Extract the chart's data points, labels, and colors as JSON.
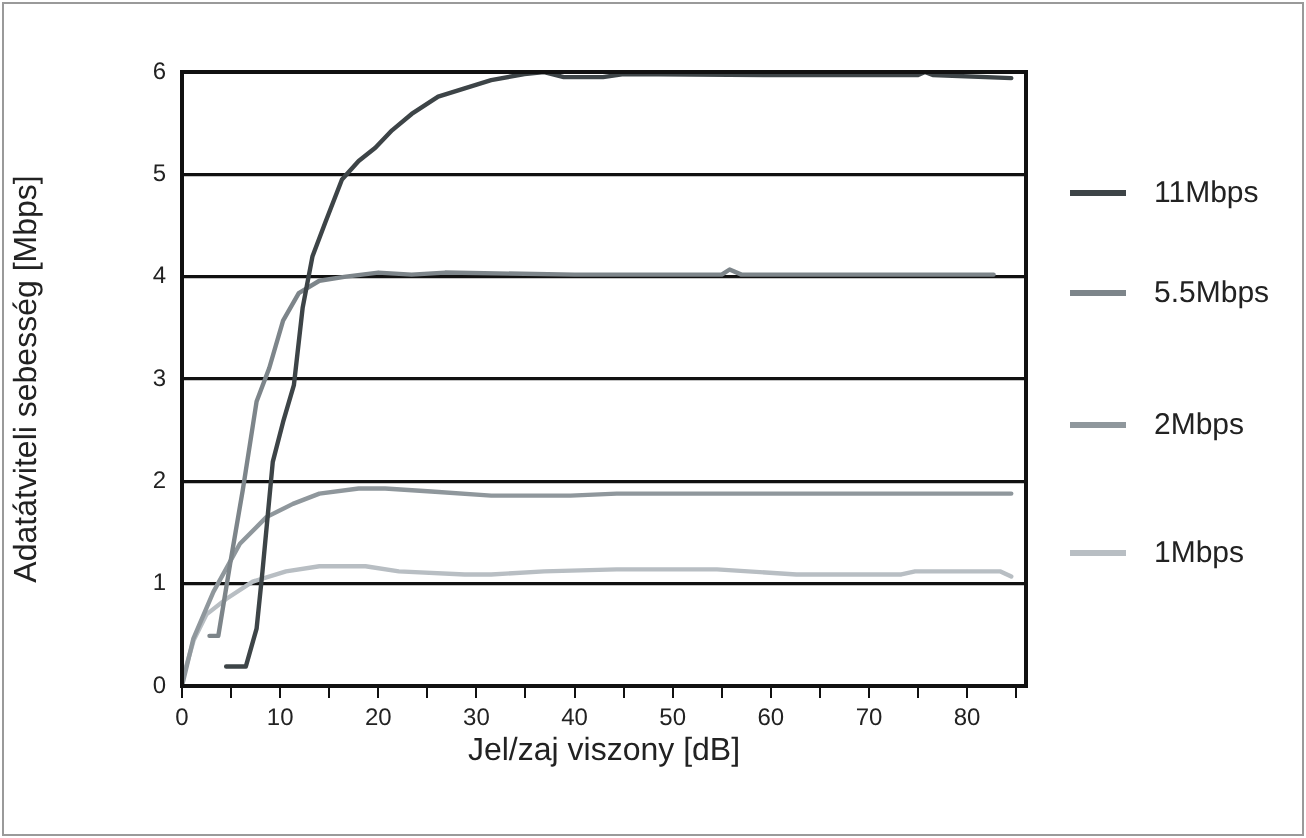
{
  "chart_data": {
    "type": "line",
    "xlabel": "Jel/zaj viszony [dB]",
    "ylabel": "Adatátviteli sebesség [Mbps]",
    "xlim": [
      0,
      86
    ],
    "ylim": [
      0,
      6
    ],
    "xticks": [
      0,
      {
        "value": 5,
        "label": null
      },
      10,
      {
        "value": 15,
        "label": null
      },
      20,
      {
        "value": 25,
        "label": null
      },
      30,
      {
        "value": 35,
        "label": null
      },
      40,
      {
        "value": 45,
        "label": null
      },
      50,
      {
        "value": 55,
        "label": null
      },
      60,
      {
        "value": 65,
        "label": null
      },
      70,
      {
        "value": 75,
        "label": null
      },
      80,
      {
        "value": 85,
        "label": null
      }
    ],
    "yticks": [
      0,
      1,
      2,
      3,
      4,
      5,
      6
    ],
    "grid": "y",
    "legend": "right",
    "marker": "none",
    "line_style": "solid",
    "series": [
      {
        "name": "11Mbps",
        "color": "#3d4447",
        "x": [
          4.5,
          6.5,
          7.6,
          8.2,
          9.25,
          10.3,
          11.4,
          12.3,
          13.3,
          14.6,
          16.3,
          18,
          19.7,
          21.4,
          23.4,
          26.1,
          28.8,
          31.5,
          34.9,
          36.9,
          38.9,
          42.9,
          45,
          60,
          75,
          75.7,
          76.5,
          84.5
        ],
        "values": [
          0.19,
          0.19,
          0.56,
          1.12,
          2.19,
          2.58,
          2.94,
          3.7,
          4.2,
          4.53,
          4.95,
          5.13,
          5.26,
          5.43,
          5.59,
          5.76,
          5.84,
          5.92,
          5.98,
          6.0,
          5.95,
          5.95,
          5.98,
          5.97,
          5.97,
          6.0,
          5.97,
          5.94
        ]
      },
      {
        "name": "5.5Mbps",
        "color": "#7d858a",
        "x": [
          2.8,
          3.7,
          4.9,
          6.2,
          7.6,
          8.9,
          10.3,
          11.9,
          14,
          16.7,
          20,
          23.4,
          26.8,
          40,
          55,
          55.8,
          57,
          70,
          82.7
        ],
        "values": [
          0.49,
          0.49,
          1.19,
          1.92,
          2.78,
          3.11,
          3.57,
          3.84,
          3.96,
          4.0,
          4.04,
          4.02,
          4.04,
          4.02,
          4.02,
          4.07,
          4.02,
          4.02,
          4.02
        ]
      },
      {
        "name": "2Mbps",
        "color": "#8f979c",
        "x": [
          0,
          1.15,
          3.2,
          5.9,
          8.6,
          11.3,
          14,
          18,
          20.7,
          25.4,
          31.5,
          39.6,
          44.3,
          60,
          84.5
        ],
        "values": [
          0,
          0.46,
          0.92,
          1.39,
          1.65,
          1.78,
          1.88,
          1.93,
          1.93,
          1.9,
          1.86,
          1.86,
          1.88,
          1.88,
          1.88
        ]
      },
      {
        "name": "1Mbps",
        "color": "#b8bec3",
        "x": [
          0,
          1.2,
          2.5,
          4.5,
          7.2,
          10.6,
          14,
          18.7,
          22.1,
          28.8,
          31.5,
          36.9,
          44.3,
          54.5,
          62.6,
          73.3,
          74.7,
          83.4,
          84.5
        ],
        "values": [
          0.05,
          0.45,
          0.7,
          0.85,
          1.02,
          1.12,
          1.17,
          1.17,
          1.12,
          1.09,
          1.09,
          1.12,
          1.14,
          1.14,
          1.09,
          1.09,
          1.12,
          1.12,
          1.07
        ]
      }
    ]
  }
}
